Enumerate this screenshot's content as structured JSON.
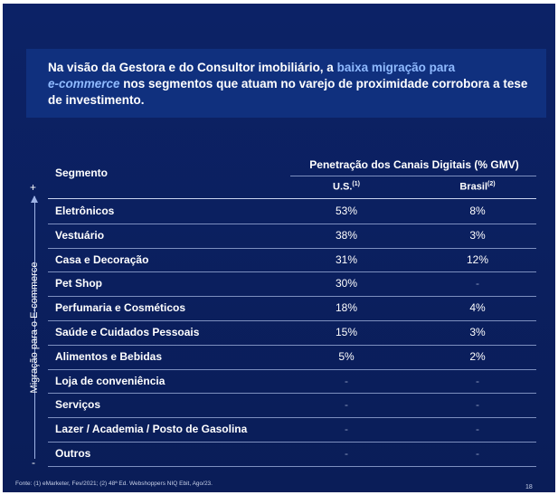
{
  "banner": {
    "part1": "Na visão da Gestora e do Consultor imobiliário, a ",
    "highlight1": "baixa migração para",
    "highlight2": "e-commerce",
    "part2": " nos segmentos que atuam no varejo de proximidade corrobora a tese de investimento."
  },
  "table": {
    "header_segment": "Segmento",
    "header_group": "Penetração dos Canais Digitais (% GMV)",
    "header_us": "U.S.",
    "header_us_note": "(1)",
    "header_br": "Brasil",
    "header_br_note": "(2)",
    "rows": [
      [
        "Eletrônicos",
        "53%",
        "8%"
      ],
      [
        "Vestuário",
        "38%",
        "3%"
      ],
      [
        "Casa e Decoração",
        "31%",
        "12%"
      ],
      [
        "Pet Shop",
        "30%",
        "-"
      ],
      [
        "Perfumaria e Cosméticos",
        "18%",
        "4%"
      ],
      [
        "Saúde e Cuidados Pessoais",
        "15%",
        "3%"
      ],
      [
        "Alimentos e Bebidas",
        "5%",
        "2%"
      ],
      [
        "Loja de conveniência",
        "-",
        "-"
      ],
      [
        "Serviços",
        "-",
        "-"
      ],
      [
        "Lazer / Academia / Posto de Gasolina",
        "-",
        "-"
      ],
      [
        "Outros",
        "-",
        "-"
      ]
    ]
  },
  "axis": {
    "label": "Migração para o E-commerce",
    "top": "+",
    "bottom": "-"
  },
  "source": "Fonte: (1) eMarketer, Fev/2021; (2) 48ª Ed. Webshoppers NIQ Ebit, Ago/23.",
  "page_number": "18"
}
